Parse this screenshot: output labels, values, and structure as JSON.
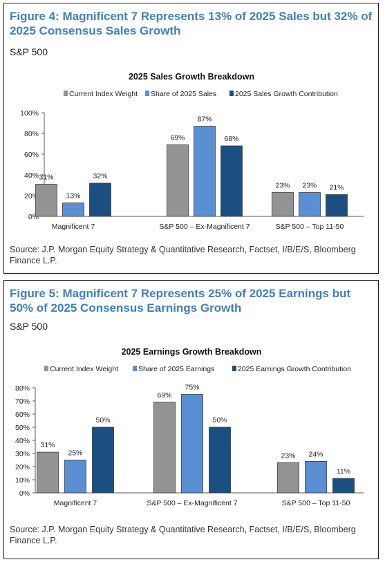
{
  "colors": {
    "weight": "#939393",
    "share": "#5a8fd3",
    "contribution": "#1b4f82",
    "title": "#3f7fc1"
  },
  "figures": [
    {
      "title": "Figure 4: Magnificent 7 Represents 13% of 2025 Sales but 32% of 2025 Consensus Sales Growth",
      "subtitle": "S&P 500",
      "source": "Source: J.P. Morgan Equity Strategy & Quantitative Research, Factset, I/B/E/S, Bloomberg Finance L.P."
    },
    {
      "title": "Figure 5: Magnificent 7 Represents 25% of 2025 Earnings but 50% of 2025 Consensus Earnings Growth",
      "subtitle": "S&P 500",
      "source": "Source: J.P. Morgan Equity Strategy & Quantitative Research, Factset, I/B/E/S, Bloomberg Finance L.P."
    }
  ],
  "chart_data": [
    {
      "type": "bar",
      "title": "2025 Sales Growth Breakdown",
      "categories": [
        "Magnificent 7",
        "S&P 500 – Ex-Magnificent 7",
        "S&P 500 – Top 11-50"
      ],
      "series": [
        {
          "name": "Current Index Weight",
          "values": [
            31,
            69,
            23
          ],
          "labels": [
            "31%",
            "69%",
            "23%"
          ]
        },
        {
          "name": "Share of 2025 Sales",
          "values": [
            13,
            87,
            23
          ],
          "labels": [
            "13%",
            "87%",
            "23%"
          ]
        },
        {
          "name": "2025 Sales Growth Contribution",
          "values": [
            32,
            68,
            21
          ],
          "labels": [
            "32%",
            "68%",
            "21%"
          ]
        }
      ],
      "ylim": [
        0,
        100
      ],
      "yticks": [
        0,
        20,
        40,
        60,
        80,
        100
      ],
      "ytick_labels": [
        "0%",
        "20%",
        "40%",
        "60%",
        "80%",
        "100%"
      ],
      "legend": "top",
      "grid": false
    },
    {
      "type": "bar",
      "title": "2025 Earnings Growth Breakdown",
      "categories": [
        "Magnificent 7",
        "S&P 500 – Ex-Magnificent 7",
        "S&P 500 – Top 11-50"
      ],
      "series": [
        {
          "name": "Current Index Weight",
          "values": [
            31,
            69,
            23
          ],
          "labels": [
            "31%",
            "69%",
            "23%"
          ]
        },
        {
          "name": "Share of 2025 Earnings",
          "values": [
            25,
            75,
            24
          ],
          "labels": [
            "25%",
            "75%",
            "24%"
          ]
        },
        {
          "name": "2025 Earnings Growth Contribution",
          "values": [
            50,
            50,
            11
          ],
          "labels": [
            "50%",
            "50%",
            "11%"
          ]
        }
      ],
      "ylim": [
        0,
        80
      ],
      "yticks": [
        0,
        10,
        20,
        30,
        40,
        50,
        60,
        70,
        80
      ],
      "ytick_labels": [
        "0%",
        "10%",
        "20%",
        "30%",
        "40%",
        "50%",
        "60%",
        "70%",
        "80%"
      ],
      "legend": "top",
      "grid": false
    }
  ]
}
